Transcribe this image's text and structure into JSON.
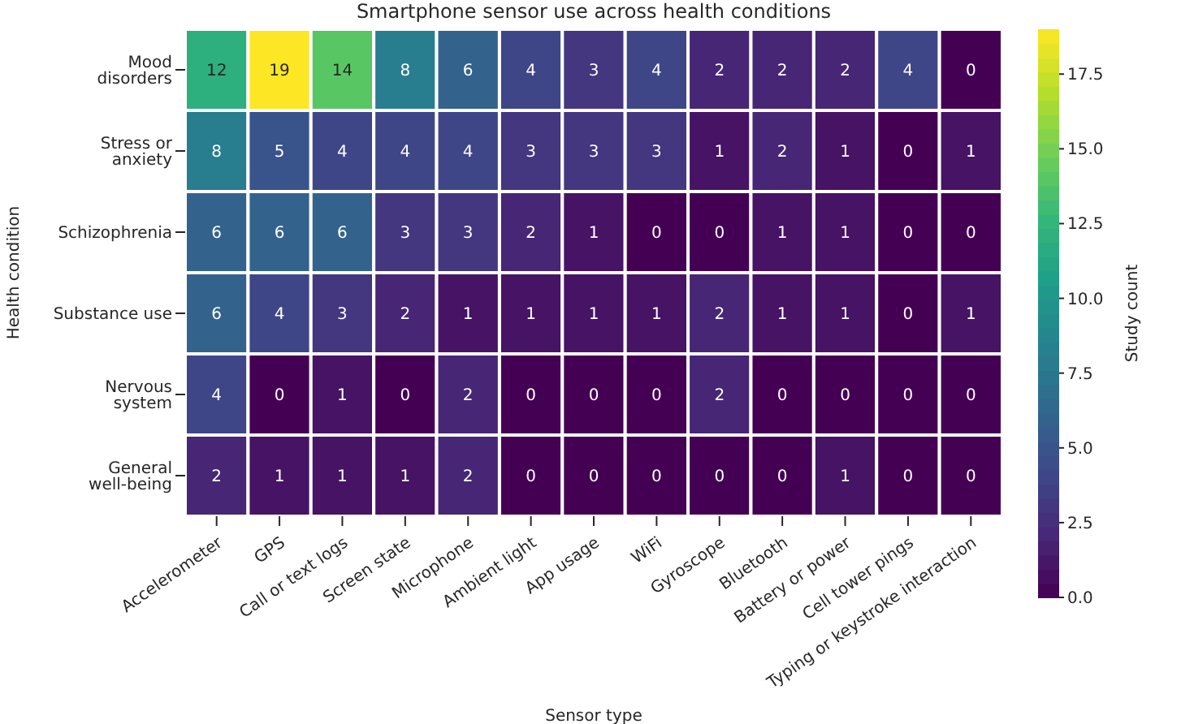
{
  "chart_data": {
    "type": "heatmap",
    "title": "Smartphone sensor use across health conditions",
    "xlabel": "Sensor type",
    "ylabel": "Health condition",
    "clabel": "Study count",
    "categories": [
      "Accelerometer",
      "GPS",
      "Call or text logs",
      "Screen state",
      "Microphone",
      "Ambient light",
      "App usage",
      "WiFi",
      "Gyroscope",
      "Bluetooth",
      "Battery or power",
      "Cell tower pings",
      "Typing or keystroke interaction"
    ],
    "y_categories": [
      "Mood disorders",
      "Stress or anxiety",
      "Schizophrenia",
      "Substance use",
      "Nervous system",
      "General well-being"
    ],
    "cells": [
      [
        12,
        19,
        14,
        8,
        6,
        4,
        3,
        4,
        2,
        2,
        2,
        4,
        0
      ],
      [
        8,
        5,
        4,
        4,
        4,
        3,
        3,
        3,
        1,
        2,
        1,
        0,
        1
      ],
      [
        6,
        6,
        6,
        3,
        3,
        2,
        1,
        0,
        0,
        1,
        1,
        0,
        0
      ],
      [
        6,
        4,
        3,
        2,
        1,
        1,
        1,
        1,
        2,
        1,
        1,
        0,
        1
      ],
      [
        4,
        0,
        1,
        0,
        2,
        0,
        0,
        0,
        2,
        0,
        0,
        0,
        0
      ],
      [
        2,
        1,
        1,
        1,
        2,
        0,
        0,
        0,
        0,
        0,
        1,
        0,
        0
      ]
    ],
    "clim": [
      0,
      19
    ],
    "cticks": [
      {
        "value": 0,
        "label": "0.0"
      },
      {
        "value": 2.5,
        "label": "2.5"
      },
      {
        "value": 5,
        "label": "5.0"
      },
      {
        "value": 7.5,
        "label": "7.5"
      },
      {
        "value": 10,
        "label": "10.0"
      },
      {
        "value": 12.5,
        "label": "12.5"
      },
      {
        "value": 15,
        "label": "15.0"
      },
      {
        "value": 17.5,
        "label": "17.5"
      }
    ],
    "data_labels": true
  }
}
